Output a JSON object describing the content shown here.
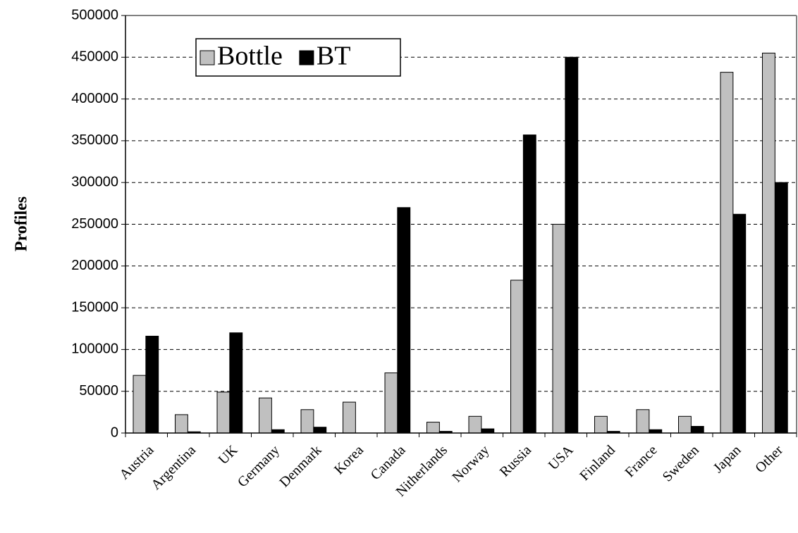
{
  "chart_data": {
    "type": "bar",
    "y_label": "Profiles",
    "categories": [
      "Austria",
      "Argentina",
      "UK",
      "Germany",
      "Denmark",
      "Korea",
      "Canada",
      "Nitherlands",
      "Norway",
      "Russia",
      "USA",
      "Finland",
      "France",
      "Sweden",
      "Japan",
      "Other"
    ],
    "series": [
      {
        "name": "Bottle",
        "color": "#c0c0c0",
        "values": [
          69000,
          22000,
          49000,
          42000,
          28000,
          37000,
          72000,
          13000,
          20000,
          183000,
          250000,
          20000,
          28000,
          20000,
          432000,
          455000
        ]
      },
      {
        "name": "BT",
        "color": "#000000",
        "values": [
          116000,
          1500,
          120000,
          4000,
          7000,
          0,
          270000,
          2000,
          5000,
          357000,
          450000,
          2000,
          4000,
          8000,
          262000,
          300000
        ]
      }
    ],
    "ylim": [
      0,
      500000
    ],
    "yticks": [
      0,
      50000,
      100000,
      150000,
      200000,
      250000,
      300000,
      350000,
      400000,
      450000,
      500000
    ],
    "grid": true,
    "legend": "top-left"
  }
}
